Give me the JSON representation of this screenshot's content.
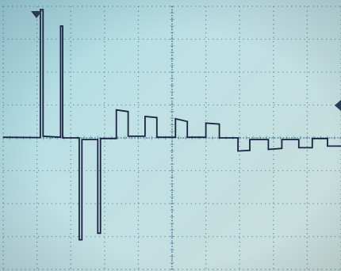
{
  "screen": {
    "background": "#bfe0e5",
    "grid_color": "#4a7f95",
    "trace_color": "#1a2440",
    "marker_color": "#2b3a55",
    "grid": {
      "divisions_x": 10,
      "divisions_y": 8,
      "minor_per_division": 5,
      "style": "dotted"
    }
  },
  "markers": {
    "trigger_position": "top-left",
    "level_marker": "right-edge"
  },
  "chart_data": {
    "type": "line",
    "title": "",
    "xlabel": "",
    "ylabel": "",
    "grid": true,
    "xlim": [
      0,
      10
    ],
    "ylim": [
      -4,
      4
    ],
    "series": [
      {
        "points": [
          [
            0.0,
            0.02
          ],
          [
            1.1,
            0.01
          ],
          [
            1.1,
            3.9
          ],
          [
            1.18,
            3.9
          ],
          [
            1.18,
            0.05
          ],
          [
            1.7,
            0.02
          ],
          [
            1.7,
            3.4
          ],
          [
            1.76,
            3.4
          ],
          [
            1.76,
            0.0
          ],
          [
            2.25,
            0.0
          ],
          [
            2.25,
            -3.1
          ],
          [
            2.33,
            -3.1
          ],
          [
            2.33,
            -0.05
          ],
          [
            2.8,
            -0.05
          ],
          [
            2.8,
            -2.9
          ],
          [
            2.88,
            -2.9
          ],
          [
            2.88,
            -0.02
          ],
          [
            3.35,
            -0.02
          ],
          [
            3.35,
            0.85
          ],
          [
            3.7,
            0.8
          ],
          [
            3.7,
            0.05
          ],
          [
            4.2,
            0.05
          ],
          [
            4.2,
            0.65
          ],
          [
            4.55,
            0.62
          ],
          [
            4.55,
            0.02
          ],
          [
            5.1,
            0.02
          ],
          [
            5.1,
            0.58
          ],
          [
            5.45,
            0.5
          ],
          [
            5.45,
            0.02
          ],
          [
            6.0,
            0.02
          ],
          [
            6.0,
            0.45
          ],
          [
            6.4,
            0.42
          ],
          [
            6.4,
            0.0
          ],
          [
            6.95,
            0.0
          ],
          [
            6.95,
            -0.4
          ],
          [
            7.3,
            -0.38
          ],
          [
            7.3,
            -0.05
          ],
          [
            7.85,
            -0.05
          ],
          [
            7.85,
            -0.35
          ],
          [
            8.25,
            -0.32
          ],
          [
            8.25,
            -0.05
          ],
          [
            8.75,
            -0.05
          ],
          [
            8.75,
            -0.3
          ],
          [
            9.15,
            -0.3
          ],
          [
            9.15,
            -0.02
          ],
          [
            9.6,
            -0.02
          ],
          [
            9.6,
            -0.25
          ],
          [
            10.0,
            -0.25
          ]
        ]
      }
    ]
  }
}
